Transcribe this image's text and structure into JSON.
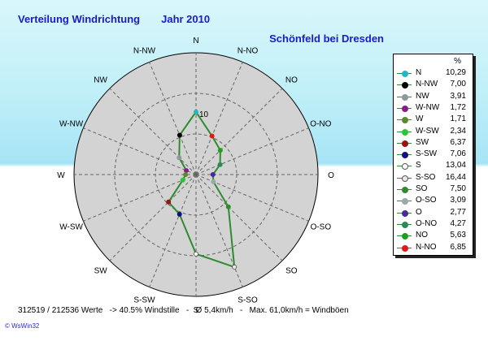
{
  "header": {
    "title": "Verteilung Windrichtung",
    "year": "Jahr 2010",
    "location": "Schönfeld bei Dresden"
  },
  "colors": {
    "line": "#2e8b2e",
    "disc": "#d3d3d3",
    "background_top": "#a6e4f5",
    "title": "#1a1ad0"
  },
  "chart_data": {
    "type": "radar",
    "radial_unit": "%",
    "radial_max": 20,
    "radial_tick_label": "10",
    "grid": true,
    "legend": "right",
    "directions": [
      "N",
      "N-NO",
      "NO",
      "O-NO",
      "O",
      "O-SO",
      "SO",
      "S-SO",
      "S",
      "S-SW",
      "SW",
      "W-SW",
      "W",
      "W-NW",
      "NW",
      "N-NW"
    ],
    "series": [
      {
        "direction": "N",
        "value": 10.29,
        "label": "10,29",
        "color": "#21b8c4"
      },
      {
        "direction": "N-NW",
        "value": 7.0,
        "label": "7,00",
        "color": "#000000"
      },
      {
        "direction": "NW",
        "value": 3.91,
        "label": "3,91",
        "color": "#8a9a9a"
      },
      {
        "direction": "W-NW",
        "value": 1.72,
        "label": "1,72",
        "color": "#8a1c8a"
      },
      {
        "direction": "W",
        "value": 1.71,
        "label": "1,71",
        "color": "#5a8a2a"
      },
      {
        "direction": "W-SW",
        "value": 2.34,
        "label": "2,34",
        "color": "#2ac63a"
      },
      {
        "direction": "SW",
        "value": 6.37,
        "label": "6,37",
        "color": "#9c1212"
      },
      {
        "direction": "S-SW",
        "value": 7.06,
        "label": "7,06",
        "color": "#101080"
      },
      {
        "direction": "S",
        "value": 13.04,
        "label": "13,04",
        "color": "#ffffff"
      },
      {
        "direction": "S-SO",
        "value": 16.44,
        "label": "16,44",
        "color": "#e8e8e8"
      },
      {
        "direction": "SO",
        "value": 7.5,
        "label": "7,50",
        "color": "#2e8b2e"
      },
      {
        "direction": "O-SO",
        "value": 3.09,
        "label": "3,09",
        "color": "#9aa8a8"
      },
      {
        "direction": "O",
        "value": 2.77,
        "label": "2,77",
        "color": "#4a2a9a"
      },
      {
        "direction": "O-NO",
        "value": 4.27,
        "label": "4,27",
        "color": "#2a8a5a"
      },
      {
        "direction": "NO",
        "value": 5.63,
        "label": "5,63",
        "color": "#1ea01e"
      },
      {
        "direction": "N-NO",
        "value": 6.85,
        "label": "6,85",
        "color": "#e01818"
      }
    ]
  },
  "legend": {
    "unit_header": "%"
  },
  "footer": {
    "text": "312519 / 212536 Werte   -> 40.5% Windstille   -   Ø 5,4km/h   -   Max. 61,0km/h = Windböen",
    "credit": "© WsWin32"
  }
}
